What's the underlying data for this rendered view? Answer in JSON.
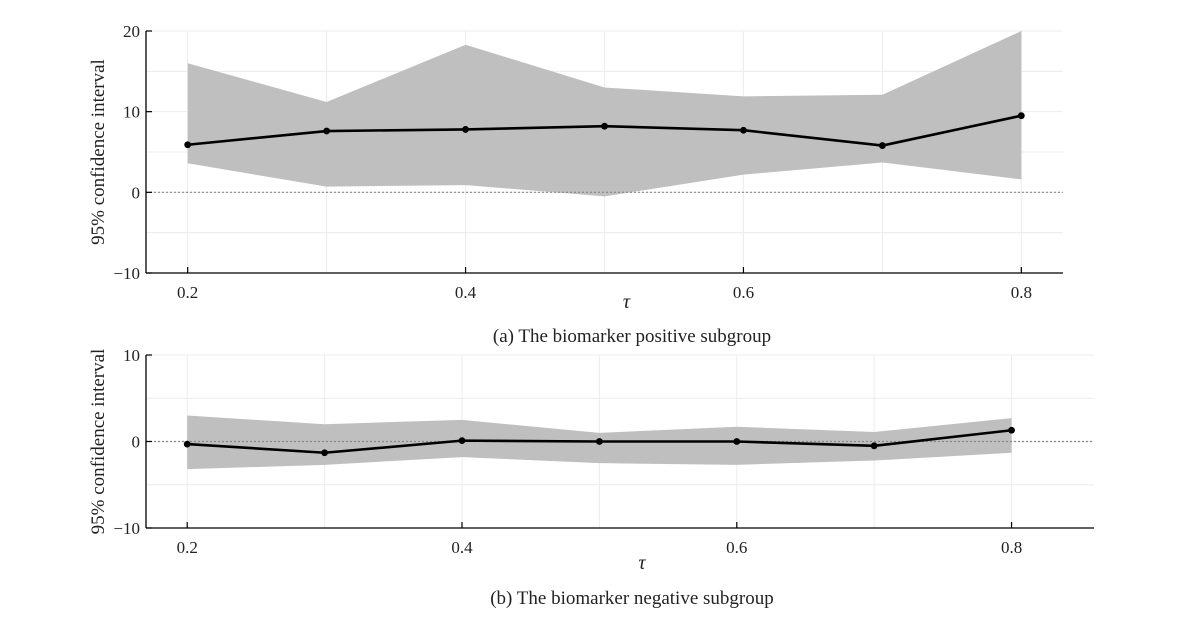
{
  "chart_data": [
    {
      "type": "line",
      "caption": "(a) The biomarker positive subgroup",
      "xlabel": "τ",
      "ylabel": "95% confidence interval",
      "x": [
        0.2,
        0.3,
        0.4,
        0.5,
        0.6,
        0.7,
        0.8
      ],
      "x_ticks": [
        "0.2",
        "0.4",
        "0.6",
        "0.8"
      ],
      "y_ticks": [
        "−10",
        "0",
        "10",
        "20"
      ],
      "xlim": [
        0.17,
        0.83
      ],
      "ylim": [
        -10,
        20
      ],
      "reference_line": 0,
      "grid": true,
      "series": [
        {
          "values": [
            5.9,
            7.6,
            7.8,
            8.2,
            7.7,
            5.8,
            9.5
          ]
        }
      ],
      "band": {
        "lower": [
          3.6,
          0.7,
          0.9,
          -0.5,
          2.2,
          3.7,
          1.6
        ],
        "upper": [
          16.0,
          11.2,
          18.3,
          13.0,
          11.9,
          12.1,
          20.0
        ]
      },
      "colors": {
        "line": "#000000",
        "band": "#bfbfbf",
        "reference": "#888888"
      }
    },
    {
      "type": "line",
      "caption": "(b) The biomarker negative subgroup",
      "xlabel": "τ",
      "ylabel": "95% confidence interval",
      "x": [
        0.2,
        0.3,
        0.4,
        0.5,
        0.6,
        0.7,
        0.8
      ],
      "x_ticks": [
        "0.2",
        "0.4",
        "0.6",
        "0.8"
      ],
      "y_ticks": [
        "−10",
        "0",
        "10"
      ],
      "xlim": [
        0.17,
        0.86
      ],
      "ylim": [
        -10,
        10
      ],
      "reference_line": 0,
      "grid": true,
      "series": [
        {
          "values": [
            -0.3,
            -1.3,
            0.1,
            0.0,
            0.0,
            -0.5,
            1.3
          ]
        }
      ],
      "band": {
        "lower": [
          -3.2,
          -2.7,
          -1.8,
          -2.5,
          -2.7,
          -2.2,
          -1.3
        ],
        "upper": [
          3.0,
          2.0,
          2.5,
          1.0,
          1.7,
          1.1,
          2.7
        ]
      },
      "colors": {
        "line": "#000000",
        "band": "#bfbfbf",
        "reference": "#888888"
      }
    }
  ]
}
